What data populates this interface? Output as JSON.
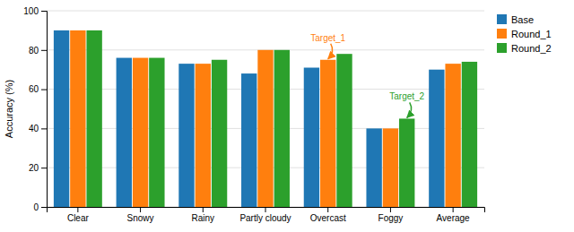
{
  "chart_data": {
    "type": "bar",
    "categories": [
      "Clear",
      "Snowy",
      "Rainy",
      "Partly cloudy",
      "Overcast",
      "Foggy",
      "Average"
    ],
    "series": [
      {
        "name": "Base",
        "values": [
          90,
          76,
          73,
          68,
          71,
          40,
          70
        ]
      },
      {
        "name": "Round_1",
        "values": [
          90,
          76,
          73,
          80,
          75,
          40,
          73
        ]
      },
      {
        "name": "Round_2",
        "values": [
          90,
          76,
          75,
          80,
          78,
          45,
          74
        ]
      }
    ],
    "ylabel": "Accuracy (%)",
    "ylim": [
      0,
      100
    ],
    "yticks": [
      0,
      20,
      40,
      60,
      80,
      100
    ],
    "grid": true,
    "legend": "upper right",
    "annotations": [
      {
        "text": "Target_1",
        "series": "Round_1",
        "category": "Overcast"
      },
      {
        "text": "Target_2",
        "series": "Round_2",
        "category": "Foggy"
      }
    ]
  }
}
